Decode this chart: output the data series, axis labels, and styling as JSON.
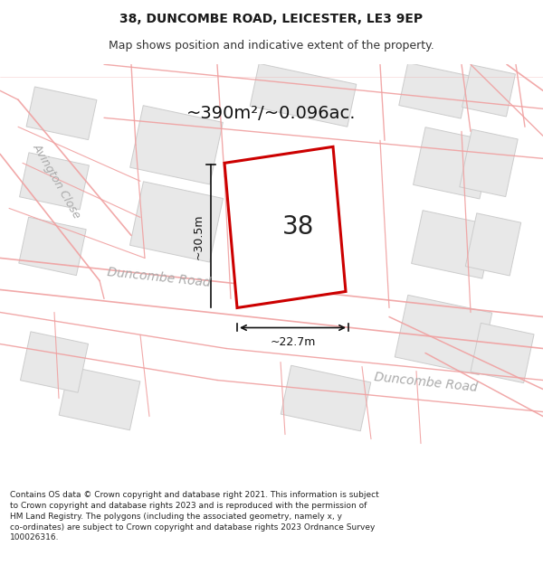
{
  "title_line1": "38, DUNCOMBE ROAD, LEICESTER, LE3 9EP",
  "title_line2": "Map shows position and indicative extent of the property.",
  "area_text": "~390m²/~0.096ac.",
  "property_number": "38",
  "dim_vertical": "~30.5m",
  "dim_horizontal": "~22.7m",
  "footer_text": "Contains OS data © Crown copyright and database right 2021. This information is subject to Crown copyright and database rights 2023 and is reproduced with the permission of HM Land Registry. The polygons (including the associated geometry, namely x, y co-ordinates) are subject to Crown copyright and database rights 2023 Ordnance Survey 100026316.",
  "bg_color": "#ffffff",
  "map_bg": "#f9f9f9",
  "block_color": "#e8e8e8",
  "block_edge": "#cccccc",
  "road_line_color": "#f0a0a0",
  "property_fill": "#ffffff",
  "property_edge": "#cc0000",
  "street_label1": "Duncombe Road",
  "street_label2": "Duncombe Road",
  "side_label": "Avington Close",
  "title_fontsize": 10,
  "subtitle_fontsize": 9,
  "area_fontsize": 14,
  "dim_fontsize": 9,
  "street_fontsize": 10,
  "side_fontsize": 9,
  "number_fontsize": 20,
  "footer_fontsize": 6.5
}
